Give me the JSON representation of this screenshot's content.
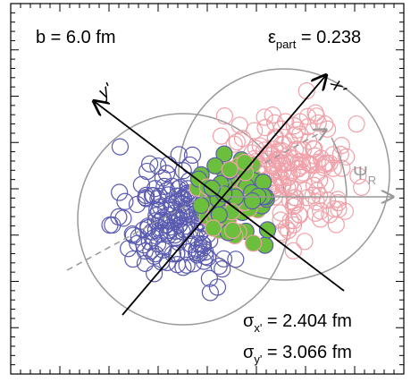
{
  "annotations": {
    "impact": "b =  6.0 fm",
    "eccentricity": {
      "symbol": "ε",
      "sub": "part",
      "value": " = 0.238"
    },
    "sigma_x": {
      "symbol": "σ",
      "sub": "x'",
      "value": " = 2.404 fm"
    },
    "sigma_y": {
      "symbol": "σ",
      "sub": "y'",
      "value": " = 3.066 fm"
    },
    "axis_x": "x'",
    "axis_y": "y'",
    "psi": {
      "symbol": "Ψ",
      "sub": "R"
    }
  }
}
